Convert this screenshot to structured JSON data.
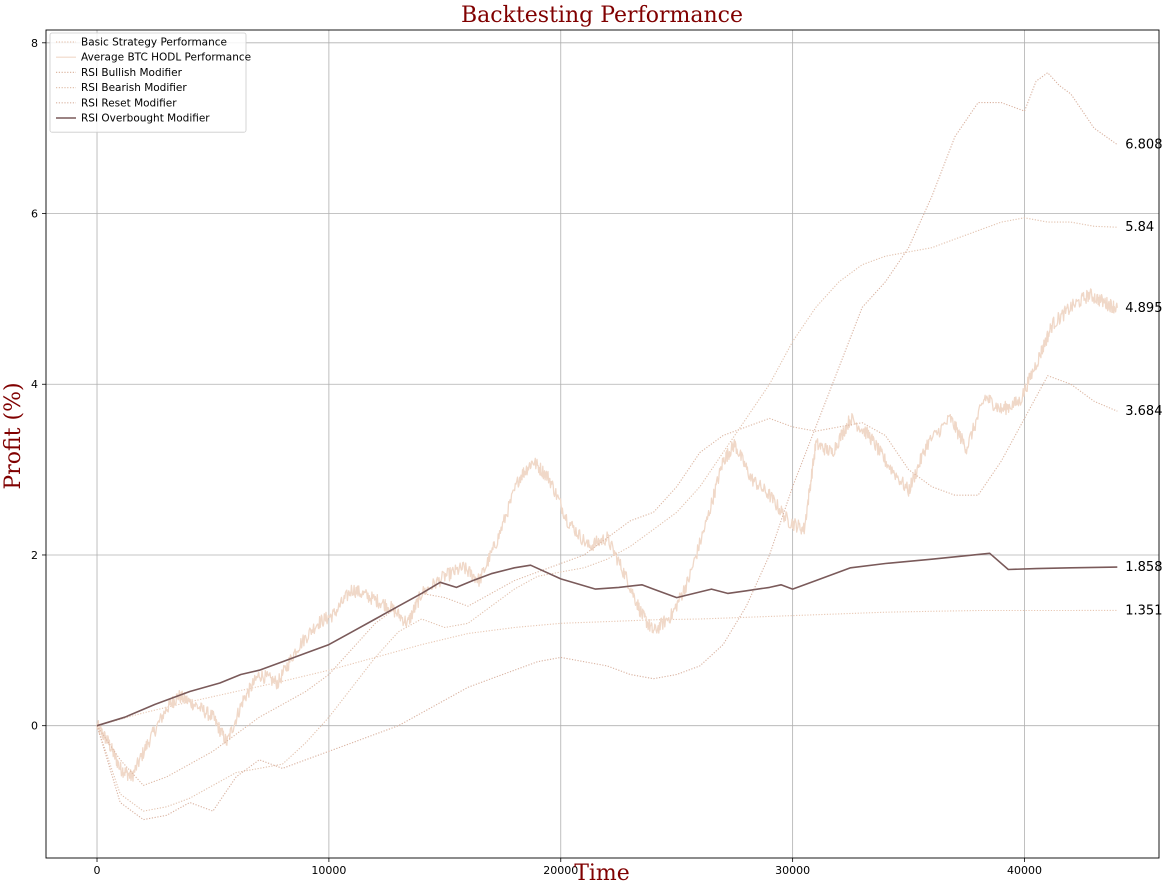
{
  "chart_data": {
    "type": "line",
    "title": "Backtesting Performance",
    "xlabel": "Time",
    "ylabel": "Profit (%)",
    "xlim": [
      -2200,
      45800
    ],
    "ylim": [
      -1.55,
      8.15
    ],
    "xticks": [
      0,
      10000,
      20000,
      30000,
      40000
    ],
    "yticks": [
      0,
      2,
      4,
      6,
      8
    ],
    "grid": true,
    "legend_position": "top-left",
    "series": [
      {
        "name": "Basic Strategy Performance",
        "color": "#e8c8b4",
        "style": "dotted",
        "x": [
          0,
          2000,
          4000,
          6000,
          8000,
          10000,
          12000,
          14000,
          16000,
          18000,
          20000,
          22000,
          24000,
          26000,
          28000,
          30000,
          32000,
          34000,
          36000,
          38000,
          40000,
          42000,
          44000
        ],
        "y": [
          0,
          0.15,
          0.28,
          0.4,
          0.52,
          0.65,
          0.8,
          0.95,
          1.08,
          1.15,
          1.2,
          1.22,
          1.24,
          1.25,
          1.27,
          1.29,
          1.31,
          1.33,
          1.34,
          1.35,
          1.35,
          1.35,
          1.351
        ]
      },
      {
        "name": "Average BTC HODL Performance",
        "color": "#f0d8c8",
        "style": "noisy",
        "x": [
          0,
          500,
          1000,
          1500,
          2200,
          3000,
          3500,
          4200,
          5000,
          5600,
          6300,
          7000,
          7800,
          8600,
          9500,
          10200,
          11000,
          11800,
          12600,
          13400,
          14000,
          15000,
          15800,
          16500,
          17300,
          18200,
          18800,
          19500,
          20300,
          21200,
          22000,
          22800,
          23500,
          24000,
          24800,
          25500,
          26300,
          27000,
          27500,
          28200,
          29000,
          29800,
          30500,
          31000,
          31700,
          32500,
          33300,
          34000,
          35000,
          35800,
          36800,
          37500,
          38300,
          39000,
          39800,
          40600,
          41200,
          42000,
          42800,
          43500,
          44000
        ],
        "y": [
          0,
          -0.2,
          -0.5,
          -0.6,
          -0.2,
          0.2,
          0.35,
          0.25,
          0.1,
          -0.2,
          0.3,
          0.6,
          0.5,
          0.9,
          1.2,
          1.3,
          1.6,
          1.5,
          1.4,
          1.2,
          1.55,
          1.75,
          1.85,
          1.7,
          2.2,
          2.9,
          3.1,
          2.9,
          2.4,
          2.1,
          2.2,
          1.75,
          1.3,
          1.1,
          1.3,
          1.7,
          2.4,
          3.1,
          3.3,
          2.9,
          2.7,
          2.4,
          2.3,
          3.3,
          3.2,
          3.6,
          3.4,
          3.1,
          2.75,
          3.3,
          3.6,
          3.25,
          3.85,
          3.7,
          3.8,
          4.3,
          4.7,
          4.9,
          5.05,
          4.95,
          4.895
        ]
      },
      {
        "name": "RSI Bullish Modifier",
        "color": "#ddb8a4",
        "style": "dotted",
        "x": [
          0,
          1000,
          2000,
          3000,
          4000,
          5000,
          6000,
          7000,
          8000,
          9000,
          10000,
          11000,
          12000,
          13000,
          14000,
          15000,
          16000,
          17000,
          18000,
          19000,
          20000,
          21000,
          22000,
          23000,
          24000,
          25000,
          26000,
          27000,
          28000,
          29000,
          30000,
          31000,
          32000,
          33000,
          34000,
          35000,
          36000,
          37000,
          38000,
          39000,
          40000,
          41000,
          42000,
          43000,
          44000
        ],
        "y": [
          0,
          -0.4,
          -0.7,
          -0.6,
          -0.45,
          -0.3,
          -0.1,
          0.1,
          0.25,
          0.4,
          0.6,
          0.9,
          1.2,
          1.4,
          1.55,
          1.5,
          1.4,
          1.55,
          1.7,
          1.8,
          1.9,
          2.0,
          2.2,
          2.4,
          2.5,
          2.8,
          3.2,
          3.4,
          3.5,
          3.6,
          3.5,
          3.45,
          3.5,
          3.55,
          3.4,
          3.0,
          2.8,
          2.7,
          2.7,
          3.1,
          3.6,
          4.1,
          4.0,
          3.8,
          3.684
        ]
      },
      {
        "name": "RSI Bearish Modifier",
        "color": "#e2c2ae",
        "style": "dotted",
        "x": [
          0,
          1000,
          2000,
          3000,
          4000,
          5000,
          6000,
          7000,
          8000,
          9000,
          10000,
          11000,
          12000,
          13000,
          14000,
          15000,
          16000,
          17000,
          18000,
          19000,
          20000,
          21000,
          22000,
          23000,
          24000,
          25000,
          26000,
          27000,
          28000,
          29000,
          30000,
          31000,
          32000,
          33000,
          34000,
          35000,
          36000,
          37000,
          38000,
          39000,
          40000,
          41000,
          42000,
          43000,
          44000
        ],
        "y": [
          0,
          -0.8,
          -1.0,
          -0.95,
          -0.85,
          -0.7,
          -0.55,
          -0.5,
          -0.45,
          -0.2,
          0.1,
          0.45,
          0.8,
          1.1,
          1.25,
          1.15,
          1.2,
          1.4,
          1.6,
          1.75,
          1.8,
          1.85,
          1.95,
          2.1,
          2.3,
          2.5,
          2.8,
          3.2,
          3.6,
          4.0,
          4.5,
          4.9,
          5.2,
          5.4,
          5.5,
          5.55,
          5.6,
          5.7,
          5.8,
          5.9,
          5.95,
          5.9,
          5.9,
          5.85,
          5.84
        ]
      },
      {
        "name": "RSI Reset Modifier",
        "color": "#d9b2a0",
        "style": "dotted",
        "x": [
          0,
          1000,
          2000,
          3000,
          4000,
          5000,
          6000,
          7000,
          8000,
          9000,
          10000,
          11000,
          12000,
          13000,
          14000,
          15000,
          16000,
          17000,
          18000,
          19000,
          20000,
          21000,
          22000,
          23000,
          24000,
          25000,
          26000,
          27000,
          28000,
          29000,
          30000,
          31000,
          32000,
          33000,
          34000,
          35000,
          36000,
          37000,
          38000,
          39000,
          40000,
          40500,
          41000,
          41500,
          42000,
          43000,
          44000
        ],
        "y": [
          0,
          -0.9,
          -1.1,
          -1.05,
          -0.9,
          -1.0,
          -0.6,
          -0.4,
          -0.5,
          -0.4,
          -0.3,
          -0.2,
          -0.1,
          0.0,
          0.15,
          0.3,
          0.45,
          0.55,
          0.65,
          0.75,
          0.8,
          0.75,
          0.7,
          0.6,
          0.55,
          0.6,
          0.7,
          0.95,
          1.4,
          2.0,
          2.8,
          3.5,
          4.2,
          4.9,
          5.2,
          5.6,
          6.2,
          6.9,
          7.3,
          7.3,
          7.2,
          7.55,
          7.65,
          7.5,
          7.4,
          7.0,
          6.808
        ]
      },
      {
        "name": "RSI Overbought Modifier",
        "color": "#7a5a5a",
        "style": "solid",
        "x": [
          0,
          1200,
          2500,
          4000,
          5300,
          6200,
          7000,
          8000,
          9000,
          10000,
          11000,
          12000,
          13000,
          14000,
          14800,
          15500,
          16200,
          17000,
          18000,
          18700,
          20000,
          21500,
          22500,
          23500,
          24000,
          25000,
          26500,
          27200,
          28000,
          29000,
          29500,
          30000,
          31000,
          32500,
          34000,
          36000,
          38500,
          39300,
          40500,
          42000,
          44000
        ],
        "y": [
          0,
          0.1,
          0.25,
          0.4,
          0.5,
          0.6,
          0.65,
          0.75,
          0.85,
          0.95,
          1.1,
          1.25,
          1.4,
          1.55,
          1.68,
          1.62,
          1.7,
          1.78,
          1.85,
          1.88,
          1.72,
          1.6,
          1.62,
          1.65,
          1.6,
          1.5,
          1.6,
          1.55,
          1.58,
          1.62,
          1.65,
          1.6,
          1.7,
          1.85,
          1.9,
          1.95,
          2.02,
          1.83,
          1.84,
          1.85,
          1.858
        ]
      }
    ],
    "end_labels": [
      {
        "text": "6.808",
        "x": 44000,
        "y": 6.808
      },
      {
        "text": "5.84",
        "x": 44000,
        "y": 5.84
      },
      {
        "text": "4.895",
        "x": 44000,
        "y": 4.895
      },
      {
        "text": "3.684",
        "x": 44000,
        "y": 3.684
      },
      {
        "text": "1.858",
        "x": 44000,
        "y": 1.858
      },
      {
        "text": "1.351",
        "x": 44000,
        "y": 1.351
      }
    ]
  }
}
